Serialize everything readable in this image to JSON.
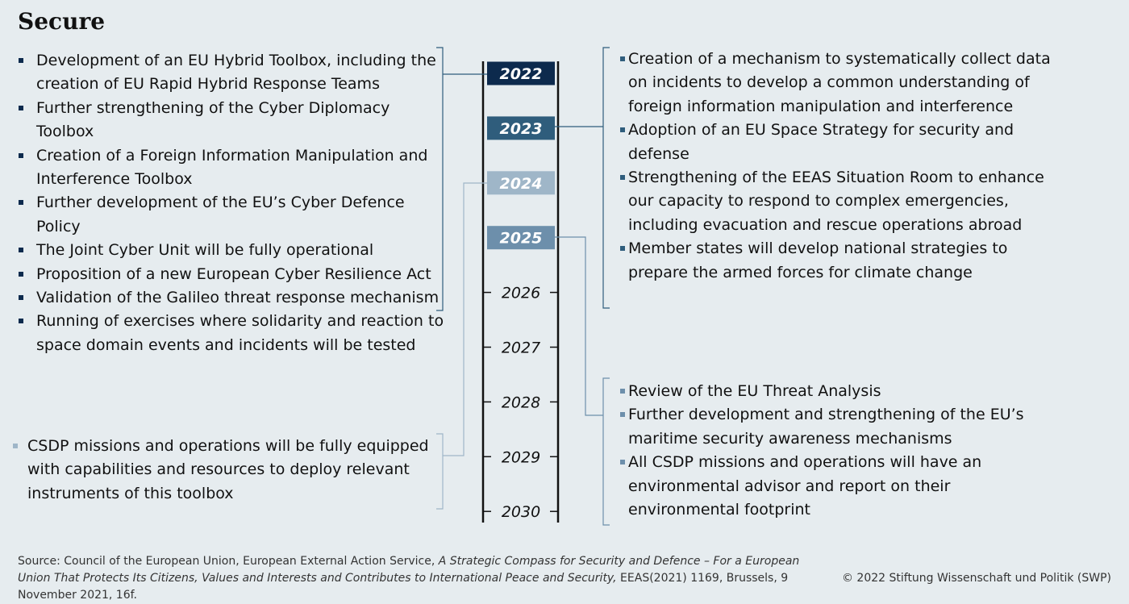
{
  "title": "Secure",
  "timeline": {
    "years": [
      "2022",
      "2023",
      "2024",
      "2025",
      "2026",
      "2027",
      "2028",
      "2029",
      "2030"
    ],
    "highlight_colors": {
      "2022": "#0d2a4d",
      "2023": "#2f5d7c",
      "2024": "#9fb6c8",
      "2025": "#6d8fab"
    }
  },
  "groups": {
    "y2022": {
      "color": "#0d2a4d",
      "items": [
        "Development of an EU Hybrid Toolbox, including the creation of EU Rapid Hybrid Response Teams",
        "Further strengthening of the Cyber Diplomacy Toolbox",
        "Creation of a Foreign Information Manipulation and Interference Toolbox",
        "Further development of the EU’s Cyber Defence Policy",
        "The Joint Cyber Unit will be fully operational",
        "Proposition of a new European Cyber Resilience Act",
        "Validation of the Galileo threat response mechanism",
        "Running of exercises where solidarity and reaction to space domain events and incidents will be tested"
      ]
    },
    "y2023": {
      "color": "#2f5d7c",
      "items": [
        "Creation of a mechanism to systematically collect data on incidents to develop a common understanding of foreign information manipulation and interference",
        "Adoption of an EU Space Strategy for security and defense",
        "Strengthening of the EEAS Situation Room to enhance our capacity to respond to complex emergencies, including evacuation and rescue operations abroad",
        "Member states will develop national strategies to prepare the armed forces for climate change"
      ]
    },
    "y2024": {
      "color": "#9fb6c8",
      "items": [
        "CSDP missions and operations will be fully equipped with capabilities and resources to deploy relevant instruments of this toolbox"
      ]
    },
    "y2025": {
      "color": "#6d8fab",
      "items": [
        "Review of the EU Threat Analysis",
        "Further development and strengthening of the EU’s maritime security awareness mechanisms",
        "All CSDP missions and operations will have an environmental advisor and report on their environmental footprint"
      ]
    }
  },
  "source": {
    "prefix": "Source: Council of the European Union, European External Action Service, ",
    "title_italic": "A Strategic Compass for Security and Defence – For a European Union That Protects Its Citizens, Values and Interests and Contributes to International Peace and Security,",
    "suffix": " EEAS(2021) 1169, Brussels, 9 November 2021, 16f."
  },
  "copyright": "© 2022 Stiftung Wissenschaft und Politik (SWP)"
}
